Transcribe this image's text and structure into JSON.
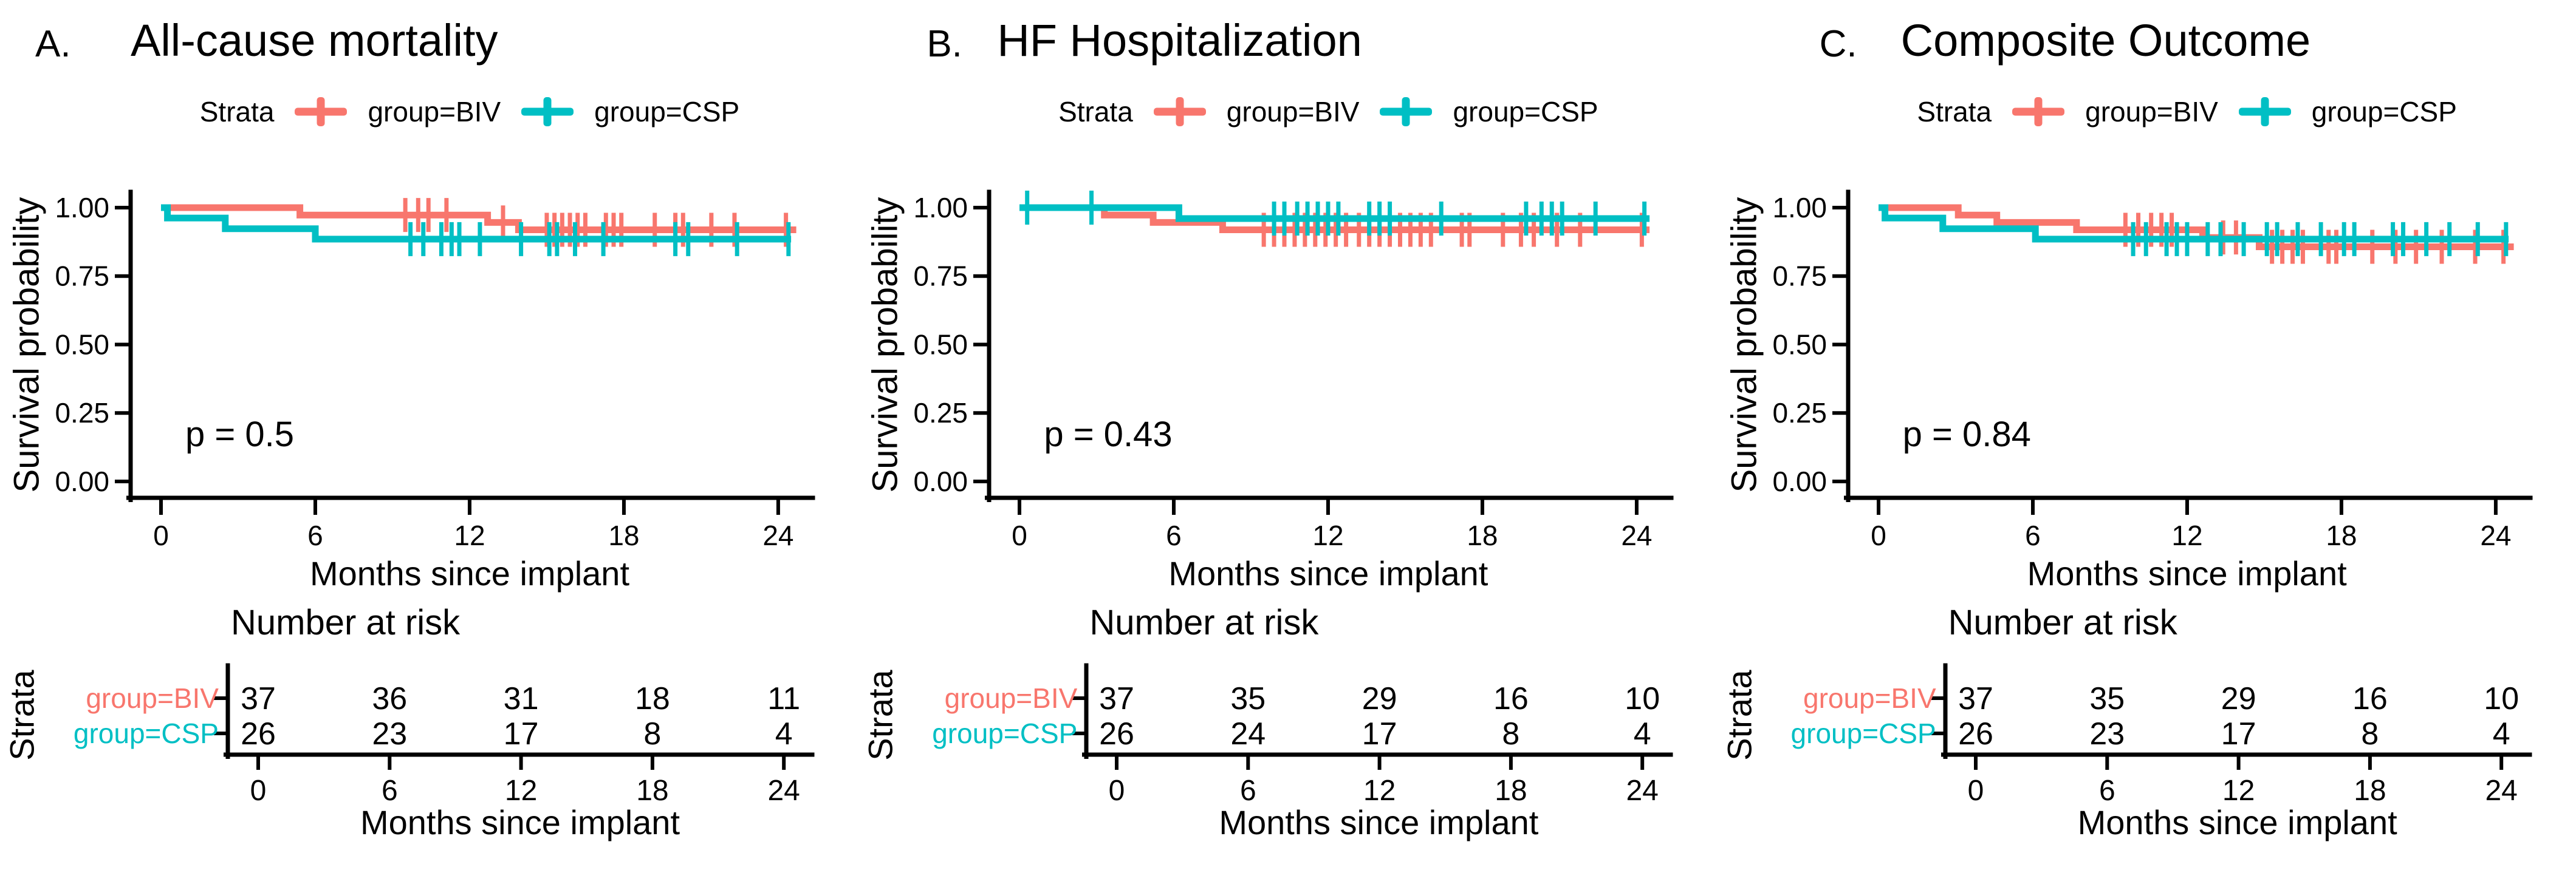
{
  "figure": {
    "background": "#ffffff",
    "text_color": "#000000"
  },
  "legend": {
    "strata_label": "Strata",
    "position": "top-center",
    "series": [
      {
        "name": "group=BIV",
        "color": "#F8766D",
        "key_icon": "plus-censor-key"
      },
      {
        "name": "group=CSP",
        "color": "#00BFC4",
        "key_icon": "plus-censor-key"
      }
    ]
  },
  "axes": {
    "x_label": "Months since implant",
    "y_label": "Survival probability",
    "x_ticks": [
      0,
      6,
      12,
      18,
      24
    ],
    "x_range": [
      0,
      25
    ],
    "y_range": [
      0,
      1
    ],
    "grid": "off",
    "y_ticks": [
      {
        "value": 1.0,
        "label": "1.00"
      },
      {
        "value": 0.75,
        "label": "0.75"
      },
      {
        "value": 0.5,
        "label": "0.50"
      },
      {
        "value": 0.25,
        "label": "0.25"
      },
      {
        "value": 0.0,
        "label": "0.00"
      }
    ]
  },
  "risk_table": {
    "title": "Number at risk",
    "strata_label": "Strata",
    "x_label": "Months since implant",
    "x_ticks": [
      0,
      6,
      12,
      18,
      24
    ]
  },
  "chart_data": [
    {
      "id": "A",
      "type": "line",
      "subtype": "kaplan-meier-step",
      "letter": "A.",
      "title": "All-cause mortality",
      "p_value": "p = 0.5",
      "series": [
        {
          "name": "group=BIV",
          "short": "biv",
          "color": "#F8766D",
          "steps": [
            [
              0,
              1.0
            ],
            [
              5.4,
              1.0
            ],
            [
              5.4,
              0.973
            ],
            [
              12.7,
              0.973
            ],
            [
              12.7,
              0.946
            ],
            [
              13.9,
              0.946
            ],
            [
              13.9,
              0.919
            ],
            [
              24.7,
              0.919
            ]
          ],
          "censor_marks": [
            [
              9.5,
              0.973
            ],
            [
              10.0,
              0.973
            ],
            [
              10.4,
              0.973
            ],
            [
              11.1,
              0.973
            ],
            [
              13.3,
              0.946
            ],
            [
              15.0,
              0.919
            ],
            [
              15.3,
              0.919
            ],
            [
              15.6,
              0.919
            ],
            [
              15.9,
              0.919
            ],
            [
              16.2,
              0.919
            ],
            [
              16.5,
              0.919
            ],
            [
              17.3,
              0.919
            ],
            [
              17.6,
              0.919
            ],
            [
              17.9,
              0.919
            ],
            [
              19.2,
              0.919
            ],
            [
              20.0,
              0.919
            ],
            [
              20.3,
              0.919
            ],
            [
              21.4,
              0.919
            ],
            [
              22.3,
              0.919
            ],
            [
              24.3,
              0.919
            ]
          ]
        },
        {
          "name": "group=CSP",
          "short": "csp",
          "color": "#00BFC4",
          "steps": [
            [
              0,
              1.0
            ],
            [
              0.25,
              1.0
            ],
            [
              0.25,
              0.962
            ],
            [
              2.5,
              0.962
            ],
            [
              2.5,
              0.923
            ],
            [
              6.0,
              0.923
            ],
            [
              6.0,
              0.885
            ],
            [
              24.5,
              0.885
            ]
          ],
          "censor_marks": [
            [
              9.7,
              0.885
            ],
            [
              10.2,
              0.885
            ],
            [
              10.9,
              0.885
            ],
            [
              11.3,
              0.885
            ],
            [
              11.6,
              0.885
            ],
            [
              12.4,
              0.885
            ],
            [
              14.0,
              0.885
            ],
            [
              15.1,
              0.885
            ],
            [
              15.4,
              0.885
            ],
            [
              16.1,
              0.885
            ],
            [
              17.2,
              0.885
            ],
            [
              20.0,
              0.885
            ],
            [
              20.5,
              0.885
            ],
            [
              22.4,
              0.885
            ],
            [
              24.4,
              0.885
            ]
          ]
        }
      ],
      "number_at_risk": [
        {
          "name": "group=BIV",
          "color": "#F8766D",
          "counts": [
            37,
            36,
            31,
            18,
            11
          ]
        },
        {
          "name": "group=CSP",
          "color": "#00BFC4",
          "counts": [
            26,
            23,
            17,
            8,
            4
          ]
        }
      ]
    },
    {
      "id": "B",
      "type": "line",
      "subtype": "kaplan-meier-step",
      "letter": "B.",
      "title": "HF Hospitalization",
      "p_value": "p = 0.43",
      "series": [
        {
          "name": "group=BIV",
          "short": "biv",
          "color": "#F8766D",
          "steps": [
            [
              0,
              1.0
            ],
            [
              3.3,
              1.0
            ],
            [
              3.3,
              0.973
            ],
            [
              5.2,
              0.973
            ],
            [
              5.2,
              0.946
            ],
            [
              7.9,
              0.946
            ],
            [
              7.9,
              0.919
            ],
            [
              24.5,
              0.919
            ]
          ],
          "censor_marks": [
            [
              9.5,
              0.919
            ],
            [
              9.9,
              0.919
            ],
            [
              10.3,
              0.919
            ],
            [
              10.7,
              0.919
            ],
            [
              11.1,
              0.919
            ],
            [
              11.5,
              0.919
            ],
            [
              11.9,
              0.919
            ],
            [
              12.3,
              0.919
            ],
            [
              12.7,
              0.919
            ],
            [
              13.2,
              0.919
            ],
            [
              13.6,
              0.919
            ],
            [
              14.0,
              0.919
            ],
            [
              14.4,
              0.919
            ],
            [
              14.8,
              0.919
            ],
            [
              15.2,
              0.919
            ],
            [
              15.6,
              0.919
            ],
            [
              16.0,
              0.919
            ],
            [
              17.2,
              0.919
            ],
            [
              17.5,
              0.919
            ],
            [
              18.8,
              0.919
            ],
            [
              19.5,
              0.919
            ],
            [
              20.0,
              0.919
            ],
            [
              20.9,
              0.919
            ],
            [
              21.8,
              0.919
            ],
            [
              24.2,
              0.919
            ]
          ]
        },
        {
          "name": "group=CSP",
          "short": "csp",
          "color": "#00BFC4",
          "steps": [
            [
              0,
              1.0
            ],
            [
              6.2,
              1.0
            ],
            [
              6.2,
              0.96
            ],
            [
              24.5,
              0.96
            ]
          ],
          "censor_marks": [
            [
              0.3,
              1.0
            ],
            [
              2.8,
              1.0
            ],
            [
              9.9,
              0.96
            ],
            [
              10.3,
              0.96
            ],
            [
              10.8,
              0.96
            ],
            [
              11.2,
              0.96
            ],
            [
              11.6,
              0.96
            ],
            [
              12.0,
              0.96
            ],
            [
              12.4,
              0.96
            ],
            [
              13.6,
              0.96
            ],
            [
              14.0,
              0.96
            ],
            [
              14.4,
              0.96
            ],
            [
              16.4,
              0.96
            ],
            [
              19.7,
              0.96
            ],
            [
              20.3,
              0.96
            ],
            [
              20.7,
              0.96
            ],
            [
              21.1,
              0.96
            ],
            [
              22.4,
              0.96
            ],
            [
              24.3,
              0.96
            ]
          ]
        }
      ],
      "number_at_risk": [
        {
          "name": "group=BIV",
          "color": "#F8766D",
          "counts": [
            37,
            35,
            29,
            16,
            10
          ]
        },
        {
          "name": "group=CSP",
          "color": "#00BFC4",
          "counts": [
            26,
            24,
            17,
            8,
            4
          ]
        }
      ]
    },
    {
      "id": "C",
      "type": "line",
      "subtype": "kaplan-meier-step",
      "letter": "C.",
      "title": "Composite Outcome",
      "p_value": "p = 0.84",
      "series": [
        {
          "name": "group=BIV",
          "short": "biv",
          "color": "#F8766D",
          "steps": [
            [
              0,
              1.0
            ],
            [
              3.1,
              1.0
            ],
            [
              3.1,
              0.973
            ],
            [
              4.6,
              0.973
            ],
            [
              4.6,
              0.946
            ],
            [
              7.7,
              0.946
            ],
            [
              7.7,
              0.919
            ],
            [
              12.6,
              0.919
            ],
            [
              12.6,
              0.891
            ],
            [
              14.8,
              0.891
            ],
            [
              14.8,
              0.857
            ],
            [
              24.7,
              0.857
            ]
          ],
          "censor_marks": [
            [
              9.6,
              0.919
            ],
            [
              10.1,
              0.919
            ],
            [
              10.6,
              0.919
            ],
            [
              11.0,
              0.919
            ],
            [
              11.4,
              0.919
            ],
            [
              13.4,
              0.891
            ],
            [
              13.9,
              0.891
            ],
            [
              15.3,
              0.857
            ],
            [
              15.7,
              0.857
            ],
            [
              16.1,
              0.857
            ],
            [
              16.5,
              0.857
            ],
            [
              17.5,
              0.857
            ],
            [
              17.8,
              0.857
            ],
            [
              19.2,
              0.857
            ],
            [
              20.1,
              0.857
            ],
            [
              20.9,
              0.857
            ],
            [
              21.9,
              0.857
            ],
            [
              23.2,
              0.857
            ],
            [
              24.3,
              0.857
            ]
          ]
        },
        {
          "name": "group=CSP",
          "short": "csp",
          "color": "#00BFC4",
          "steps": [
            [
              0,
              1.0
            ],
            [
              0.25,
              1.0
            ],
            [
              0.25,
              0.962
            ],
            [
              2.5,
              0.962
            ],
            [
              2.5,
              0.923
            ],
            [
              6.1,
              0.923
            ],
            [
              6.1,
              0.885
            ],
            [
              24.5,
              0.885
            ]
          ],
          "censor_marks": [
            [
              9.9,
              0.885
            ],
            [
              10.4,
              0.885
            ],
            [
              11.2,
              0.885
            ],
            [
              11.6,
              0.885
            ],
            [
              12.0,
              0.885
            ],
            [
              12.8,
              0.885
            ],
            [
              13.3,
              0.885
            ],
            [
              14.2,
              0.885
            ],
            [
              15.1,
              0.885
            ],
            [
              15.5,
              0.885
            ],
            [
              16.3,
              0.885
            ],
            [
              17.2,
              0.885
            ],
            [
              18.1,
              0.885
            ],
            [
              18.5,
              0.885
            ],
            [
              20.0,
              0.885
            ],
            [
              20.4,
              0.885
            ],
            [
              21.3,
              0.885
            ],
            [
              22.2,
              0.885
            ],
            [
              23.3,
              0.885
            ],
            [
              24.4,
              0.885
            ]
          ]
        }
      ],
      "number_at_risk": [
        {
          "name": "group=BIV",
          "color": "#F8766D",
          "counts": [
            37,
            35,
            29,
            16,
            10
          ]
        },
        {
          "name": "group=CSP",
          "color": "#00BFC4",
          "counts": [
            26,
            23,
            17,
            8,
            4
          ]
        }
      ]
    }
  ]
}
